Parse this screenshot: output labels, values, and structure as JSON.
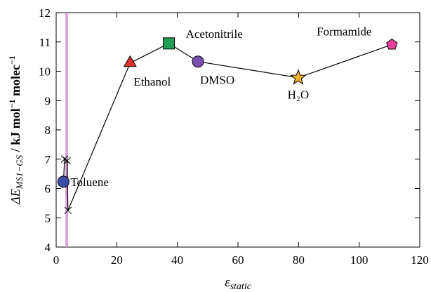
{
  "chart_data": {
    "type": "line",
    "xlabel": [
      "ε",
      "static"
    ],
    "ylabel": [
      "ΔE",
      "MS1−GS",
      " / kJ mol",
      "−1",
      " molec",
      "−1"
    ],
    "x": [
      2.4,
      2.8,
      3.6,
      3.9,
      24.4,
      37.2,
      46.8,
      79.9,
      110.8
    ],
    "y": [
      6.23,
      7.0,
      6.95,
      5.25,
      10.28,
      10.95,
      10.33,
      9.78,
      10.91
    ],
    "markers": [
      "circle",
      "x",
      "x",
      "x",
      "triangle",
      "square",
      "circle",
      "star",
      "pentagon"
    ],
    "colors": [
      "#3b4fa8",
      "#000000",
      "#000000",
      "#000000",
      "#e03232",
      "#1e9e52",
      "#7a4fb2",
      "#f2b533",
      "#e2409c"
    ],
    "labels": [
      "Toluene",
      null,
      null,
      null,
      "Ethanol",
      "Acetonitrile",
      "DMSO",
      "H₂O",
      "Formamide"
    ],
    "line_color": "#000000",
    "vline": {
      "x": 3.5,
      "color": "#d9a3d8"
    },
    "xlim": [
      0,
      120
    ],
    "xticks": [
      0,
      20,
      40,
      60,
      80,
      100,
      120
    ],
    "ylim": [
      4,
      12
    ],
    "yticks": [
      4,
      5,
      6,
      7,
      8,
      9,
      10,
      11,
      12
    ]
  }
}
